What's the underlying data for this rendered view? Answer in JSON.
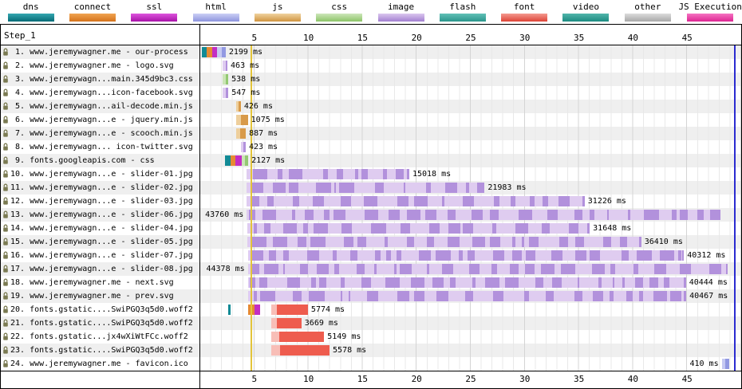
{
  "step_label": "Step_1",
  "legend": [
    {
      "label": "dns",
      "c1": "#35a7b1",
      "c2": "#056b76"
    },
    {
      "label": "connect",
      "c1": "#f0a552",
      "c2": "#d4731b"
    },
    {
      "label": "ssl",
      "c1": "#dd55dd",
      "c2": "#a812a8"
    },
    {
      "label": "html",
      "c1": "#ccd0f5",
      "c2": "#8d94dd"
    },
    {
      "label": "js",
      "c1": "#f0d3a0",
      "c2": "#cf9440"
    },
    {
      "label": "css",
      "c1": "#cde6ba",
      "c2": "#8cc468"
    },
    {
      "label": "image",
      "c1": "#dbc7ee",
      "c2": "#a27fd0"
    },
    {
      "label": "flash",
      "c1": "#62c0b7",
      "c2": "#2b968c"
    },
    {
      "label": "font",
      "c1": "#f49a90",
      "c2": "#dd4437"
    },
    {
      "label": "video",
      "c1": "#52b5ab",
      "c2": "#1d8c82"
    },
    {
      "label": "other",
      "c1": "#dcdcdc",
      "c2": "#a8a8a8"
    },
    {
      "label": "JS Execution",
      "c1": "#f573c2",
      "c2": "#dd2592"
    }
  ],
  "colors": {
    "dns": "#128a95",
    "connect": "#e68a32",
    "ssl": "#c32ec3",
    "html_l": "#c5c9f2",
    "html_d": "#9299e2",
    "js_l": "#eecf9c",
    "js_d": "#d89a4a",
    "css_l": "#cbe4b6",
    "css_d": "#94c973",
    "img_l": "#dfccf0",
    "img_d": "#b291dc",
    "font_l": "#f8beb7",
    "font_d": "#ee5c4e"
  },
  "markers": [
    {
      "label": "start-render",
      "t": 4.65,
      "color": "#e3c43a"
    },
    {
      "label": "document-complete",
      "t": 49.35,
      "color": "#2b2bd0"
    }
  ],
  "chart_data": {
    "type": "waterfall",
    "title": "Step_1",
    "x_unit": "seconds",
    "x_ticks": [
      "5",
      "10",
      "15",
      "20",
      "25",
      "30",
      "35",
      "40",
      "45"
    ],
    "x_max": 50,
    "rows": [
      {
        "num": " 1.",
        "label": "www.jeremywagner.me - our-process",
        "type": "html",
        "duration_ms": 2199,
        "time_label": "2199 ms",
        "time_label_pos": "after",
        "segments": [
          [
            "dns",
            0.15,
            0.62
          ],
          [
            "connect",
            0.62,
            1.1
          ],
          [
            "ssl",
            1.1,
            1.55
          ],
          [
            "html_l",
            1.55,
            2.0
          ],
          [
            "html_d",
            2.0,
            2.35
          ]
        ]
      },
      {
        "num": " 2.",
        "label": "www.jeremywagner.me - logo.svg",
        "type": "image",
        "duration_ms": 463,
        "time_label": "463 ms",
        "time_label_pos": "after",
        "segments": [
          [
            "img_l",
            2.05,
            2.33
          ],
          [
            "img_d",
            2.33,
            2.51
          ]
        ]
      },
      {
        "num": " 3.",
        "label": "www.jeremywagn...main.345d9bc3.css",
        "type": "css",
        "duration_ms": 538,
        "time_label": "538 ms",
        "time_label_pos": "after",
        "segments": [
          [
            "css_l",
            2.05,
            2.36
          ],
          [
            "css_d",
            2.36,
            2.59
          ]
        ]
      },
      {
        "num": " 4.",
        "label": "www.jeremywagn...icon-facebook.svg",
        "type": "image",
        "duration_ms": 547,
        "time_label": "547 ms",
        "time_label_pos": "after",
        "segments": [
          [
            "img_l",
            2.05,
            2.37
          ],
          [
            "img_d",
            2.37,
            2.6
          ]
        ]
      },
      {
        "num": " 5.",
        "label": "www.jeremywagn...ail-decode.min.js",
        "type": "js",
        "duration_ms": 426,
        "time_label": "426 ms",
        "time_label_pos": "after",
        "segments": [
          [
            "js_l",
            3.32,
            3.55
          ],
          [
            "js_d",
            3.55,
            3.75
          ]
        ]
      },
      {
        "num": " 6.",
        "label": "www.jeremywagn...e - jquery.min.js",
        "type": "js",
        "duration_ms": 1075,
        "time_label": "1075 ms",
        "time_label_pos": "after",
        "segments": [
          [
            "js_l",
            3.32,
            3.75
          ],
          [
            "js_d",
            3.75,
            4.4
          ]
        ]
      },
      {
        "num": " 7.",
        "label": "www.jeremywagn...e - scooch.min.js",
        "type": "js",
        "duration_ms": 887,
        "time_label": "887 ms",
        "time_label_pos": "after",
        "segments": [
          [
            "js_l",
            3.32,
            3.7
          ],
          [
            "js_d",
            3.7,
            4.21
          ]
        ]
      },
      {
        "num": " 8.",
        "label": "www.jeremywagn... icon-twitter.svg",
        "type": "image",
        "duration_ms": 423,
        "time_label": "423 ms",
        "time_label_pos": "after",
        "segments": [
          [
            "img_l",
            3.78,
            4.0
          ],
          [
            "img_d",
            4.0,
            4.2
          ]
        ]
      },
      {
        "num": " 9.",
        "label": "fonts.googleapis.com - css",
        "type": "css",
        "duration_ms": 2127,
        "time_label": "2127 ms",
        "time_label_pos": "after",
        "segments": [
          [
            "dns",
            2.3,
            2.78
          ],
          [
            "connect",
            2.78,
            3.25
          ],
          [
            "ssl",
            3.25,
            3.8
          ],
          [
            "css_l",
            3.8,
            4.15
          ],
          [
            "css_d",
            4.15,
            4.43
          ]
        ]
      },
      {
        "num": "10.",
        "label": "www.jeremywagn...e - slider-01.jpg",
        "type": "image",
        "duration_ms": 15018,
        "time_label": "15018 ms",
        "time_label_pos": "after",
        "segments": [
          [
            "img_chunks",
            4.3,
            19.32
          ]
        ]
      },
      {
        "num": "11.",
        "label": "www.jeremywagn...e - slider-02.jpg",
        "type": "image",
        "duration_ms": 21983,
        "time_label": "21983 ms",
        "time_label_pos": "after",
        "segments": [
          [
            "img_chunks",
            4.3,
            26.28
          ]
        ]
      },
      {
        "num": "12.",
        "label": "www.jeremywagn...e - slider-03.jpg",
        "type": "image",
        "duration_ms": 31226,
        "time_label": "31226 ms",
        "time_label_pos": "after",
        "segments": [
          [
            "img_chunks",
            4.3,
            35.53
          ]
        ]
      },
      {
        "num": "13.",
        "label": "www.jeremywagn...e - slider-06.jpg",
        "type": "image",
        "duration_ms": 43760,
        "time_label": "43760 ms",
        "time_label_pos": "before",
        "segments": [
          [
            "img_chunks",
            4.3,
            48.06
          ]
        ]
      },
      {
        "num": "14.",
        "label": "www.jeremywagn...e - slider-04.jpg",
        "type": "image",
        "duration_ms": 31648,
        "time_label": "31648 ms",
        "time_label_pos": "after",
        "segments": [
          [
            "img_chunks",
            4.35,
            36.0
          ]
        ]
      },
      {
        "num": "15.",
        "label": "www.jeremywagn...e - slider-05.jpg",
        "type": "image",
        "duration_ms": 36410,
        "time_label": "36410 ms",
        "time_label_pos": "after",
        "segments": [
          [
            "img_chunks",
            4.35,
            40.76
          ]
        ]
      },
      {
        "num": "16.",
        "label": "www.jeremywagn...e - slider-07.jpg",
        "type": "image",
        "duration_ms": 40312,
        "time_label": "40312 ms",
        "time_label_pos": "after",
        "segments": [
          [
            "img_chunks",
            4.4,
            44.71
          ]
        ]
      },
      {
        "num": "17.",
        "label": "www.jeremywagn...e - slider-08.jpg",
        "type": "image",
        "duration_ms": 44378,
        "time_label": "44378 ms",
        "time_label_pos": "before",
        "segments": [
          [
            "img_chunks",
            4.4,
            48.78
          ]
        ]
      },
      {
        "num": "18.",
        "label": "www.jeremywagner.me - next.svg",
        "type": "image",
        "duration_ms": 40444,
        "time_label": "40444 ms",
        "time_label_pos": "after",
        "segments": [
          [
            "img_chunks",
            4.45,
            44.89
          ]
        ]
      },
      {
        "num": "19.",
        "label": "www.jeremywagner.me - prev.svg",
        "type": "image",
        "duration_ms": 40467,
        "time_label": "40467 ms",
        "time_label_pos": "after",
        "segments": [
          [
            "img_chunks",
            4.45,
            44.92
          ]
        ]
      },
      {
        "num": "20.",
        "label": "fonts.gstatic....SwiPGQ3q5d0.woff2",
        "type": "font",
        "duration_ms": 5774,
        "time_label": "5774 ms",
        "time_label_pos": "after",
        "segments": [
          [
            "dns",
            2.55,
            2.82
          ],
          [
            "connect",
            4.42,
            5.0
          ],
          [
            "ssl",
            5.0,
            5.5
          ],
          [
            "font_l",
            6.55,
            7.1
          ],
          [
            "font_d",
            7.1,
            9.95
          ]
        ]
      },
      {
        "num": "21.",
        "label": "fonts.gstatic....SwiPGQ3q5d0.woff2",
        "type": "font",
        "duration_ms": 3669,
        "time_label": "3669 ms",
        "time_label_pos": "after",
        "segments": [
          [
            "font_l",
            6.55,
            7.05
          ],
          [
            "font_d",
            7.05,
            9.35
          ]
        ]
      },
      {
        "num": "22.",
        "label": "fonts.gstatic...jx4wXiWtFCc.woff2",
        "type": "font",
        "duration_ms": 5149,
        "time_label": "5149 ms",
        "time_label_pos": "after",
        "segments": [
          [
            "font_l",
            6.55,
            7.3
          ],
          [
            "font_d",
            7.3,
            11.45
          ]
        ]
      },
      {
        "num": "23.",
        "label": "fonts.gstatic....SwiPGQ3q5d0.woff2",
        "type": "font",
        "duration_ms": 5578,
        "time_label": "5578 ms",
        "time_label_pos": "after",
        "segments": [
          [
            "font_l",
            6.55,
            7.35
          ],
          [
            "font_d",
            7.35,
            11.95
          ]
        ]
      },
      {
        "num": "24.",
        "label": "www.jeremywagner.me - favicon.ico",
        "type": "other",
        "duration_ms": 410,
        "time_label": "410 ms",
        "time_label_pos": "before",
        "segments": [
          [
            "html_l",
            48.2,
            48.5
          ],
          [
            "html_d",
            48.5,
            48.9
          ]
        ]
      }
    ]
  }
}
